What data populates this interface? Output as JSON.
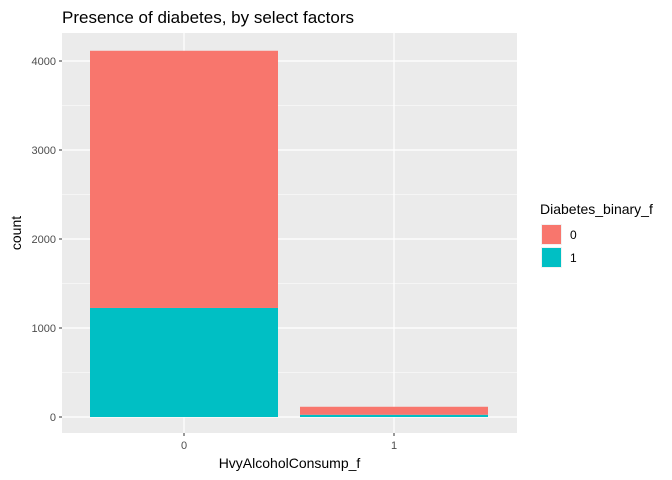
{
  "chart_data": {
    "type": "bar",
    "stacked": true,
    "title": "Presence of diabetes, by select factors",
    "xlabel": "HvyAlcoholConsump_f",
    "ylabel": "count",
    "categories": [
      "0",
      "1"
    ],
    "ylim": [
      0,
      4300
    ],
    "y_ticks": [
      0,
      1000,
      2000,
      3000,
      4000
    ],
    "grid": true,
    "legend": {
      "title": "Diabetes_binary_f",
      "position": "right"
    },
    "series": [
      {
        "name": "0",
        "color": "#F8766D",
        "values": [
          2890,
          90
        ]
      },
      {
        "name": "1",
        "color": "#00BFC4",
        "values": [
          1225,
          25
        ]
      }
    ]
  }
}
